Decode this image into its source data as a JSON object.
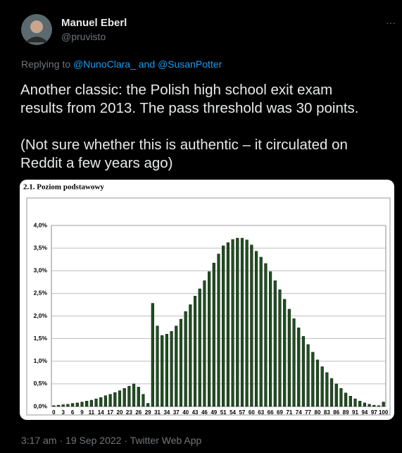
{
  "tweet": {
    "name": "Manuel Eberl",
    "handle": "@pruvisto",
    "more": "···",
    "replying_prefix": "Replying to",
    "replying_to": "@NunoClara_ and @SusanPotter",
    "text_lines": [
      "Another classic: the Polish high school exit exam",
      "results from 2013. The pass threshold was 30 points.",
      "(Not sure whether this is authentic – it circulated on",
      "Reddit a few years ago)"
    ],
    "footer": "3:17 am · 19 Sep 2022 · Twitter Web App"
  },
  "chart_data": {
    "type": "bar",
    "title": "2.1. Poziom podstawowy",
    "color": "#1f4f1f",
    "grid": true,
    "categories": [
      "0",
      null,
      "3",
      null,
      "6",
      null,
      "9",
      null,
      "11",
      null,
      "14",
      null,
      "17",
      null,
      "20",
      null,
      "23",
      null,
      "26",
      null,
      "29",
      null,
      "31",
      null,
      "34",
      null,
      "37",
      null,
      "40",
      null,
      "43",
      null,
      "46",
      null,
      "49",
      null,
      "51",
      null,
      "54",
      null,
      "57",
      null,
      "60",
      null,
      "63",
      null,
      "66",
      null,
      "69",
      null,
      "71",
      null,
      "74",
      null,
      "77",
      null,
      "80",
      null,
      "83",
      null,
      "86",
      null,
      "89",
      null,
      "91",
      null,
      "94",
      null,
      "97",
      null,
      "100"
    ],
    "values": [
      0.02,
      0.03,
      0.04,
      0.05,
      0.07,
      0.08,
      0.1,
      0.12,
      0.14,
      0.17,
      0.2,
      0.24,
      0.27,
      0.31,
      0.35,
      0.4,
      0.45,
      0.5,
      0.43,
      0.27,
      0.07,
      2.28,
      1.78,
      1.57,
      1.6,
      1.66,
      1.78,
      1.93,
      2.1,
      2.25,
      2.44,
      2.6,
      2.78,
      2.98,
      3.17,
      3.37,
      3.55,
      3.62,
      3.69,
      3.72,
      3.72,
      3.68,
      3.57,
      3.43,
      3.3,
      3.16,
      2.98,
      2.78,
      2.58,
      2.37,
      2.15,
      1.94,
      1.74,
      1.55,
      1.37,
      1.2,
      1.03,
      0.88,
      0.75,
      0.62,
      0.5,
      0.4,
      0.3,
      0.23,
      0.17,
      0.12,
      0.08,
      0.05,
      0.03,
      0.02,
      0.1
    ],
    "ylim": [
      0,
      4
    ],
    "yticks": [
      {
        "value": 0,
        "label": "0,0%"
      },
      {
        "value": 0.5,
        "label": "0,5%"
      },
      {
        "value": 1,
        "label": "1,0%"
      },
      {
        "value": 1.5,
        "label": "1,5%"
      },
      {
        "value": 2,
        "label": "2,0%"
      },
      {
        "value": 2.5,
        "label": "2,5%"
      },
      {
        "value": 3,
        "label": "3,0%"
      },
      {
        "value": 3.5,
        "label": "3,5%"
      },
      {
        "value": 4,
        "label": "4,0%"
      }
    ]
  }
}
